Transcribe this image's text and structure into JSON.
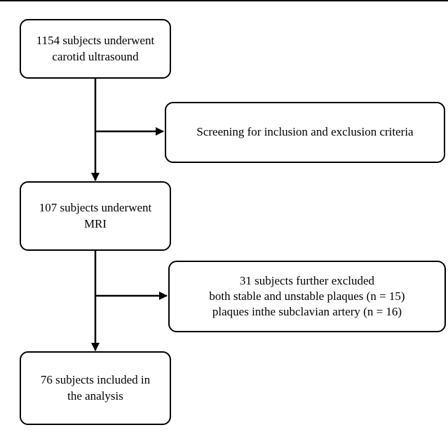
{
  "flowchart": {
    "step1": {
      "lines": [
        "1154 subjects underwent",
        "carotid ultrasound"
      ]
    },
    "exclusion1": {
      "lines": [
        "Screening for inclusion and exclusion criteria"
      ]
    },
    "step2": {
      "lines": [
        "107 subjects underwent",
        "MRI"
      ]
    },
    "exclusion2": {
      "lines": [
        "31 subjects further excluded",
        "both stable and unstable plaques (n = 15)",
        "plaques inthe subclavian artery (n = 16)"
      ]
    },
    "step3": {
      "lines": [
        "76 subjects included in",
        "the analysis"
      ]
    }
  }
}
